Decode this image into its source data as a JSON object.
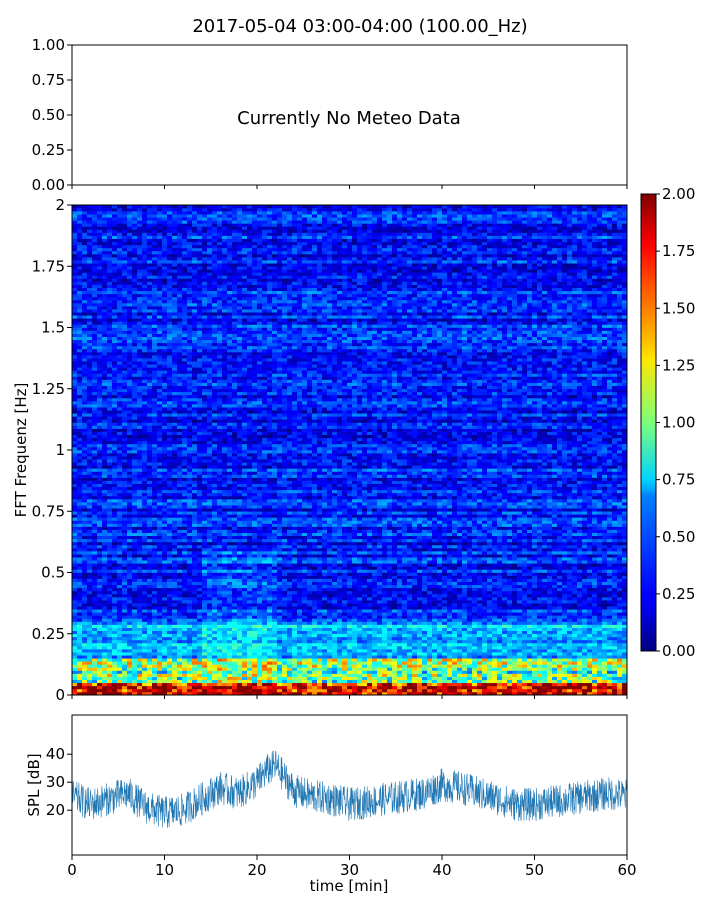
{
  "chart_data": [
    {
      "type": "line",
      "panel": "meteo",
      "title": "2017-05-04 03:00-04:00 (100.00_Hz)",
      "annotation": "Currently No Meteo Data",
      "xlim": [
        0,
        60
      ],
      "ylim": [
        0.0,
        1.0
      ],
      "y_ticks": [
        "0.00",
        "0.25",
        "0.50",
        "0.75",
        "1.00"
      ],
      "series": []
    },
    {
      "type": "heatmap",
      "panel": "spectrogram",
      "ylabel": "FFT Frequenz [Hz]",
      "xlim": [
        0,
        60
      ],
      "ylim": [
        0,
        2
      ],
      "y_ticks": [
        "0",
        "0.25",
        "0.5",
        "0.75",
        "1",
        "1.25",
        "1.5",
        "1.75",
        "2"
      ],
      "colormap": "jet",
      "colorbar": {
        "range": [
          0.0,
          2.0
        ],
        "ticks": [
          "0.00",
          "0.25",
          "0.50",
          "0.75",
          "1.00",
          "1.25",
          "1.50",
          "1.75",
          "2.00"
        ]
      },
      "typical_values": {
        "freq_0_to_0.05_Hz": 1.8,
        "freq_0.05_to_0.15_Hz": 1.0,
        "freq_0.15_to_0.3_Hz": 0.6,
        "freq_0.3_to_2_Hz": 0.3
      }
    },
    {
      "type": "line",
      "panel": "spl",
      "xlabel": "time [min]",
      "ylabel": "SPL [dB]",
      "xlim": [
        0,
        60
      ],
      "ylim": [
        4,
        54
      ],
      "x_ticks": [
        "0",
        "10",
        "20",
        "30",
        "40",
        "50",
        "60"
      ],
      "y_ticks": [
        "20",
        "30",
        "40"
      ],
      "series": [
        {
          "color": "#1f77b4",
          "x": [
            0,
            2,
            4,
            6,
            8,
            10,
            12,
            14,
            16,
            18,
            20,
            21,
            22,
            24,
            26,
            28,
            30,
            32,
            34,
            36,
            38,
            40,
            42,
            44,
            46,
            48,
            50,
            52,
            54,
            56,
            58,
            60
          ],
          "y": [
            25,
            22,
            24,
            26,
            21,
            19,
            20,
            24,
            28,
            26,
            30,
            34,
            36,
            27,
            25,
            24,
            22,
            23,
            24,
            25,
            26,
            29,
            28,
            26,
            24,
            22,
            22,
            23,
            24,
            25,
            26,
            25
          ]
        }
      ]
    }
  ]
}
